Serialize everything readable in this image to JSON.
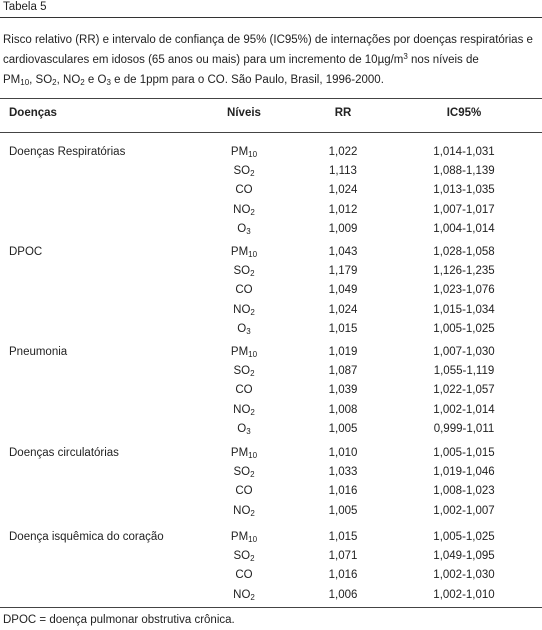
{
  "label": "Tabela 5",
  "caption": {
    "part1": "Risco relativo (RR) e intervalo de confiança de 95% (IC95%) de internações por doenças respiratórias e cardiovasculares em idosos (65 anos ou mais) para um incremento de 10µg/m",
    "part1_sup": "3",
    "part2": " nos níveis de",
    "pm": "PM",
    "pm_sub": "10",
    "sep1": ", ",
    "so": "SO",
    "so_sub": "2",
    "sep2": ", ",
    "no": "NO",
    "no_sub": "2",
    "conj": " e ",
    "o": "O",
    "o_sub": "3",
    "tail": " e de 1ppm para o CO. São Paulo, Brasil, 1996-2000."
  },
  "headers": {
    "disease": "Doenças",
    "level": "Níveis",
    "rr": "RR",
    "ci": "IC95%"
  },
  "groups": [
    {
      "disease": "Doenças Respiratórias",
      "rows": [
        {
          "p": "PM",
          "s": "10",
          "rr": "1,022",
          "ci": "1,014-1,031"
        },
        {
          "p": "SO",
          "s": "2",
          "rr": "1,113",
          "ci": "1,088-1,139"
        },
        {
          "p": "CO",
          "s": "",
          "rr": "1,024",
          "ci": "1,013-1,035"
        },
        {
          "p": "NO",
          "s": "2",
          "rr": "1,012",
          "ci": "1,007-1,017"
        },
        {
          "p": "O",
          "s": "3",
          "rr": "1,009",
          "ci": "1,004-1,014"
        }
      ]
    },
    {
      "disease": "DPOC",
      "rows": [
        {
          "p": "PM",
          "s": "10",
          "rr": "1,043",
          "ci": "1,028-1,058"
        },
        {
          "p": "SO",
          "s": "2",
          "rr": "1,179",
          "ci": "1,126-1,235"
        },
        {
          "p": "CO",
          "s": "",
          "rr": "1,049",
          "ci": "1,023-1,076"
        },
        {
          "p": "NO",
          "s": "2",
          "rr": "1,024",
          "ci": "1,015-1,034"
        },
        {
          "p": "O",
          "s": "3",
          "rr": "1,015",
          "ci": "1,005-1,025"
        }
      ]
    },
    {
      "disease": "Pneumonia",
      "rows": [
        {
          "p": "PM",
          "s": "10",
          "rr": "1,019",
          "ci": "1,007-1,030"
        },
        {
          "p": "SO",
          "s": "2",
          "rr": "1,087",
          "ci": "1,055-1,119"
        },
        {
          "p": "CO",
          "s": "",
          "rr": "1,039",
          "ci": "1,022-1,057"
        },
        {
          "p": "NO",
          "s": "2",
          "rr": "1,008",
          "ci": "1,002-1,014"
        },
        {
          "p": "O",
          "s": "3",
          "rr": "1,005",
          "ci": "0,999-1,011"
        }
      ]
    },
    {
      "disease": "Doenças circulatórias",
      "rows": [
        {
          "p": "PM",
          "s": "10",
          "rr": "1,010",
          "ci": "1,005-1,015"
        },
        {
          "p": "SO",
          "s": "2",
          "rr": "1,033",
          "ci": "1,019-1,046"
        },
        {
          "p": "CO",
          "s": "",
          "rr": "1,016",
          "ci": "1,008-1,023"
        },
        {
          "p": "NO",
          "s": "2",
          "rr": "1,005",
          "ci": "1,002-1,007"
        }
      ]
    },
    {
      "disease": "Doença isquêmica do coração",
      "rows": [
        {
          "p": "PM",
          "s": "10",
          "rr": "1,015",
          "ci": "1,005-1,025"
        },
        {
          "p": "SO",
          "s": "2",
          "rr": "1,071",
          "ci": "1,049-1,095"
        },
        {
          "p": "CO",
          "s": "",
          "rr": "1,016",
          "ci": "1,002-1,030"
        },
        {
          "p": "NO",
          "s": "2",
          "rr": "1,006",
          "ci": "1,002-1,010"
        }
      ]
    }
  ],
  "footnote": "DPOC = doença pulmonar obstrutiva crônica."
}
